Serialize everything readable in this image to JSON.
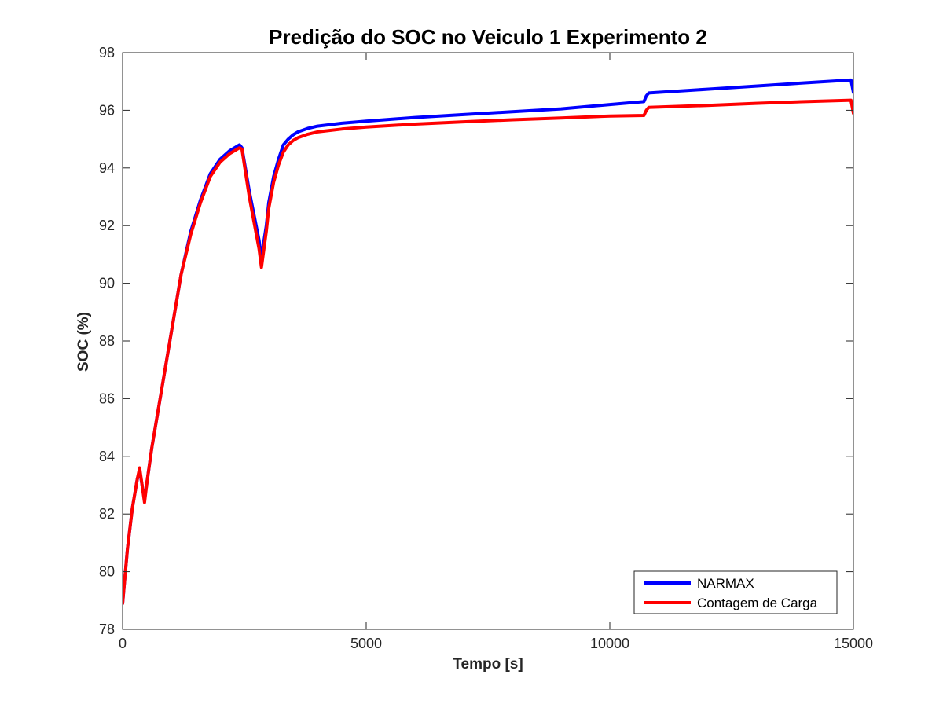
{
  "chart_data": {
    "type": "line",
    "title": "Predição do SOC no Veiculo 1 Experimento 2",
    "xlabel": "Tempo [s]",
    "ylabel": "SOC (%)",
    "xlim": [
      0,
      15000
    ],
    "ylim": [
      78,
      98
    ],
    "xticks": [
      0,
      5000,
      10000,
      15000
    ],
    "yticks": [
      78,
      80,
      82,
      84,
      86,
      88,
      90,
      92,
      94,
      96,
      98
    ],
    "grid": false,
    "legend_position": "bottom-right",
    "series": [
      {
        "name": "NARMAX",
        "color": "#0000ff",
        "x": [
          0,
          100,
          200,
          300,
          350,
          450,
          500,
          600,
          700,
          800,
          1000,
          1200,
          1400,
          1600,
          1800,
          2000,
          2200,
          2400,
          2450,
          2600,
          2800,
          2850,
          2950,
          3000,
          3100,
          3200,
          3300,
          3400,
          3500,
          3600,
          3800,
          4000,
          4500,
          5000,
          6000,
          7000,
          8000,
          9000,
          10000,
          10700,
          10750,
          10800,
          12000,
          13000,
          14000,
          14950,
          15000
        ],
        "y": [
          78.9,
          80.8,
          82.2,
          83.2,
          83.5,
          82.5,
          83.1,
          84.3,
          85.3,
          86.3,
          88.3,
          90.3,
          91.8,
          92.9,
          93.8,
          94.3,
          94.6,
          94.8,
          94.7,
          93.2,
          91.5,
          90.9,
          92.0,
          92.8,
          93.7,
          94.3,
          94.8,
          95.0,
          95.15,
          95.25,
          95.37,
          95.45,
          95.55,
          95.62,
          95.75,
          95.85,
          95.95,
          96.05,
          96.2,
          96.3,
          96.5,
          96.6,
          96.73,
          96.84,
          96.95,
          97.05,
          96.62
        ]
      },
      {
        "name": "Contagem de Carga",
        "color": "#ff0000",
        "x": [
          0,
          100,
          200,
          300,
          350,
          450,
          500,
          600,
          700,
          800,
          1000,
          1200,
          1400,
          1600,
          1800,
          2000,
          2200,
          2400,
          2450,
          2600,
          2800,
          2850,
          2950,
          3000,
          3100,
          3200,
          3300,
          3400,
          3500,
          3600,
          3800,
          4000,
          4500,
          5000,
          6000,
          7000,
          8000,
          9000,
          10000,
          10700,
          10750,
          10800,
          12000,
          13000,
          14000,
          14950,
          15000
        ],
        "y": [
          78.9,
          80.8,
          82.2,
          83.2,
          83.6,
          82.4,
          83.1,
          84.3,
          85.3,
          86.3,
          88.3,
          90.3,
          91.7,
          92.8,
          93.7,
          94.2,
          94.5,
          94.7,
          94.65,
          93.0,
          91.2,
          90.55,
          91.8,
          92.6,
          93.5,
          94.1,
          94.55,
          94.8,
          94.95,
          95.05,
          95.17,
          95.25,
          95.35,
          95.42,
          95.52,
          95.6,
          95.67,
          95.73,
          95.8,
          95.82,
          96.0,
          96.1,
          96.17,
          96.24,
          96.3,
          96.35,
          95.9
        ]
      }
    ]
  }
}
